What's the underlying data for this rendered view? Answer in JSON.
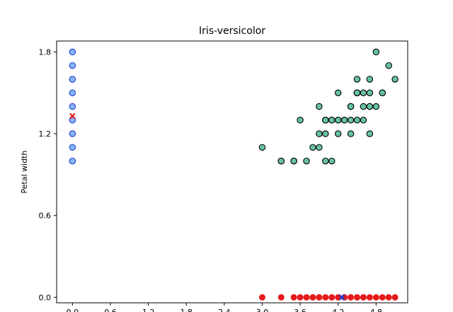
{
  "chart_data": {
    "type": "scatter",
    "title": "Iris-versicolor",
    "xlabel": "",
    "ylabel": "Petal width",
    "xlim": [
      -0.25,
      5.3
    ],
    "ylim": [
      -0.04,
      1.88
    ],
    "xticks": [
      0.0,
      0.6,
      1.2,
      1.8,
      2.4,
      3.0,
      3.6,
      4.2,
      4.8
    ],
    "xtick_labels": [
      "0.0",
      "0.6",
      "1.2",
      "1.8",
      "2.4",
      "3.0",
      "3.6",
      "4.2",
      "4.8"
    ],
    "yticks": [
      0.0,
      0.6,
      1.2,
      1.8
    ],
    "ytick_labels": [
      "0.0",
      "0.6",
      "1.2",
      "1.8"
    ],
    "grid": false,
    "colors": {
      "teal_points": "#66c2a5",
      "blue_points": "#87b4f5",
      "blue_edge": "#1f3fd1",
      "red_points": "#e51b1b",
      "red_marker": "#e51b1b",
      "blue_marker": "#1f3fd1"
    },
    "series": [
      {
        "marker": "circle-edged",
        "color": "#66c2a5",
        "points": [
          [
            4.7,
            1.4
          ],
          [
            4.5,
            1.5
          ],
          [
            4.9,
            1.5
          ],
          [
            4.0,
            1.3
          ],
          [
            4.6,
            1.5
          ],
          [
            4.5,
            1.3
          ],
          [
            4.7,
            1.6
          ],
          [
            3.3,
            1.0
          ],
          [
            4.6,
            1.3
          ],
          [
            3.9,
            1.4
          ],
          [
            3.5,
            1.0
          ],
          [
            4.2,
            1.5
          ],
          [
            4.0,
            1.0
          ],
          [
            4.7,
            1.4
          ],
          [
            3.6,
            1.3
          ],
          [
            4.4,
            1.4
          ],
          [
            4.5,
            1.5
          ],
          [
            4.1,
            1.0
          ],
          [
            4.5,
            1.5
          ],
          [
            3.9,
            1.1
          ],
          [
            4.8,
            1.8
          ],
          [
            4.0,
            1.3
          ],
          [
            4.9,
            1.5
          ],
          [
            4.7,
            1.2
          ],
          [
            4.3,
            1.3
          ],
          [
            4.4,
            1.4
          ],
          [
            4.8,
            1.4
          ],
          [
            5.0,
            1.7
          ],
          [
            4.5,
            1.5
          ],
          [
            3.5,
            1.0
          ],
          [
            3.8,
            1.1
          ],
          [
            3.7,
            1.0
          ],
          [
            3.9,
            1.2
          ],
          [
            5.1,
            1.6
          ],
          [
            4.5,
            1.5
          ],
          [
            4.5,
            1.6
          ],
          [
            4.7,
            1.5
          ],
          [
            4.4,
            1.3
          ],
          [
            4.1,
            1.3
          ],
          [
            4.0,
            1.3
          ],
          [
            4.4,
            1.2
          ],
          [
            4.6,
            1.4
          ],
          [
            4.0,
            1.2
          ],
          [
            3.3,
            1.0
          ],
          [
            4.2,
            1.3
          ],
          [
            4.2,
            1.2
          ],
          [
            4.2,
            1.3
          ],
          [
            4.3,
            1.3
          ],
          [
            3.0,
            1.1
          ],
          [
            4.1,
            1.3
          ]
        ]
      },
      {
        "marker": "circle-edged",
        "color": "#87b4f5",
        "points": [
          [
            0.0,
            1.0
          ],
          [
            0.0,
            1.1
          ],
          [
            0.0,
            1.2
          ],
          [
            0.0,
            1.3
          ],
          [
            0.0,
            1.4
          ],
          [
            0.0,
            1.5
          ],
          [
            0.0,
            1.6
          ],
          [
            0.0,
            1.7
          ],
          [
            0.0,
            1.8
          ]
        ]
      },
      {
        "marker": "circle",
        "color": "#e51b1b",
        "points": [
          [
            3.0,
            0.0
          ],
          [
            3.3,
            0.0
          ],
          [
            3.5,
            0.0
          ],
          [
            3.6,
            0.0
          ],
          [
            3.7,
            0.0
          ],
          [
            3.8,
            0.0
          ],
          [
            3.9,
            0.0
          ],
          [
            4.0,
            0.0
          ],
          [
            4.1,
            0.0
          ],
          [
            4.2,
            0.0
          ],
          [
            4.3,
            0.0
          ],
          [
            4.4,
            0.0
          ],
          [
            4.5,
            0.0
          ],
          [
            4.6,
            0.0
          ],
          [
            4.7,
            0.0
          ],
          [
            4.8,
            0.0
          ],
          [
            4.9,
            0.0
          ],
          [
            5.0,
            0.0
          ],
          [
            5.1,
            0.0
          ]
        ]
      },
      {
        "marker": "x",
        "color": "#e51b1b",
        "points": [
          [
            0.0,
            1.33
          ]
        ]
      },
      {
        "marker": "x",
        "color": "#1f3fd1",
        "points": [
          [
            4.26,
            0.0
          ]
        ]
      }
    ]
  }
}
